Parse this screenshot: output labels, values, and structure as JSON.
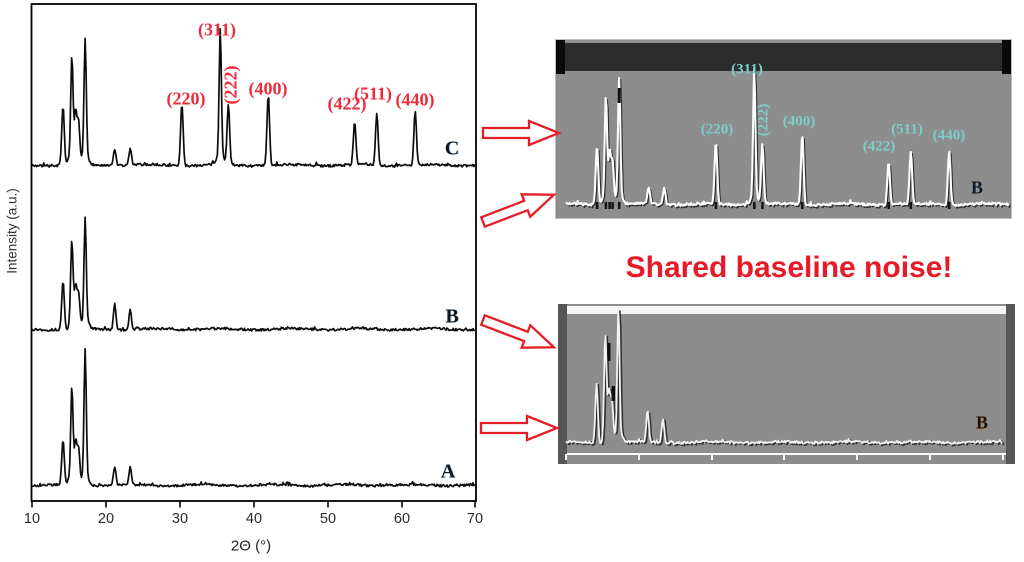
{
  "caption": {
    "text": "Shared baseline noise!",
    "color": "#e71b28"
  },
  "main_chart": {
    "xlabel": "2Θ (°)",
    "ylabel": "Intensity (a.u.)",
    "x_ticks": [
      "10",
      "20",
      "30",
      "40",
      "50",
      "60",
      "70"
    ],
    "series_letters": {
      "top": "C",
      "middle": "B",
      "bottom": "A"
    },
    "label_color": "#ed2b3a",
    "peak_labels": [
      {
        "text": "(220)"
      },
      {
        "text": "(311)"
      },
      {
        "text": "(222)"
      },
      {
        "text": "(400)"
      },
      {
        "text": "(422)"
      },
      {
        "text": "(511)"
      },
      {
        "text": "(440)"
      }
    ]
  },
  "inset_top": {
    "letter": "B",
    "label_color": "#7bcfc9",
    "peak_labels": [
      {
        "text": "(311)"
      },
      {
        "text": "(220)"
      },
      {
        "text": "(222)"
      },
      {
        "text": "(400)"
      },
      {
        "text": "(422)"
      },
      {
        "text": "(511)"
      },
      {
        "text": "(440)"
      }
    ]
  },
  "inset_bottom": {
    "letter": "B"
  },
  "icons": {
    "arrow_color": "#e41e26",
    "arrows": [
      "block-arrow-right-icon",
      "block-arrow-up-right-icon",
      "block-arrow-down-right-icon",
      "block-arrow-right-icon"
    ]
  },
  "chart_data": {
    "type": "line",
    "title": "",
    "xlabel": "2Θ (°)",
    "ylabel": "Intensity (a.u.)",
    "xlim": [
      10,
      70
    ],
    "x_ticks": [
      10,
      20,
      30,
      40,
      50,
      60,
      70
    ],
    "grid": false,
    "legend_position": "none",
    "series": [
      {
        "name": "C",
        "offset": "top",
        "peaks": [
          [
            14.2,
            58
          ],
          [
            15.4,
            102
          ],
          [
            15.9,
            48
          ],
          [
            16.3,
            40
          ],
          [
            17.2,
            117
          ],
          [
            21.2,
            17
          ],
          [
            23.3,
            17
          ],
          [
            30.3,
            62
          ],
          [
            35.5,
            125
          ],
          [
            36.6,
            61
          ],
          [
            42.0,
            71
          ],
          [
            53.7,
            44
          ],
          [
            56.7,
            53
          ],
          [
            61.9,
            54
          ]
        ],
        "indexed_peaks": {
          "(220)": 30.3,
          "(311)": 35.5,
          "(222)": 36.6,
          "(400)": 42.0,
          "(422)": 53.7,
          "(511)": 56.7,
          "(440)": 61.9
        }
      },
      {
        "name": "B",
        "offset": "middle",
        "peaks": [
          [
            14.2,
            48
          ],
          [
            15.4,
            88
          ],
          [
            15.9,
            42
          ],
          [
            16.3,
            34
          ],
          [
            17.2,
            104
          ],
          [
            21.2,
            26
          ],
          [
            23.3,
            19
          ]
        ]
      },
      {
        "name": "A",
        "offset": "bottom",
        "peaks": [
          [
            14.2,
            44
          ],
          [
            15.4,
            91
          ],
          [
            15.9,
            40
          ],
          [
            16.3,
            35
          ],
          [
            17.2,
            126
          ],
          [
            21.2,
            19
          ],
          [
            23.3,
            17
          ]
        ]
      }
    ]
  }
}
